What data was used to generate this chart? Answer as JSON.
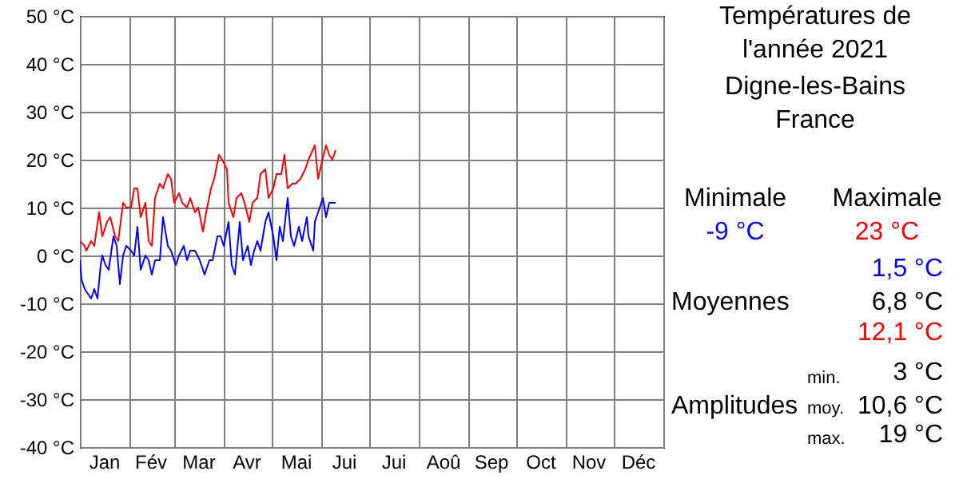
{
  "chart_data": {
    "type": "line",
    "title": "Températures de l'année 2021",
    "subtitle": "Digne-les-Bains France",
    "xlim": [
      "2021-01-01",
      "2022-01-01"
    ],
    "xticks": [
      {
        "value": "2021-01-01",
        "label": null
      },
      {
        "value": "2021-01-16",
        "label": "Jan"
      },
      {
        "value": "2021-02-01",
        "label": null
      },
      {
        "value": "2021-02-14",
        "label": "Fév"
      },
      {
        "value": "2021-03-01",
        "label": null
      },
      {
        "value": "2021-03-16",
        "label": "Mar"
      },
      {
        "value": "2021-04-01",
        "label": null
      },
      {
        "value": "2021-04-15",
        "label": "Avr"
      },
      {
        "value": "2021-05-01",
        "label": null
      },
      {
        "value": "2021-05-16",
        "label": "Mai"
      },
      {
        "value": "2021-06-01",
        "label": null
      },
      {
        "value": "2021-06-15",
        "label": "Jui"
      },
      {
        "value": "2021-07-01",
        "label": null
      },
      {
        "value": "2021-07-16",
        "label": "Jui"
      },
      {
        "value": "2021-08-01",
        "label": null
      },
      {
        "value": "2021-08-16",
        "label": "Aoû"
      },
      {
        "value": "2021-09-01",
        "label": null
      },
      {
        "value": "2021-09-15",
        "label": "Sep"
      },
      {
        "value": "2021-10-01",
        "label": null
      },
      {
        "value": "2021-10-16",
        "label": "Oct"
      },
      {
        "value": "2021-11-01",
        "label": null
      },
      {
        "value": "2021-11-15",
        "label": "Nov"
      },
      {
        "value": "2021-12-01",
        "label": null
      },
      {
        "value": "2021-12-16",
        "label": "Déc"
      },
      {
        "value": "2022-01-01",
        "label": null
      }
    ],
    "ylim": [
      -40,
      50
    ],
    "yticks": [
      {
        "value": -40,
        "label": "-40 °C"
      },
      {
        "value": -30,
        "label": "-30 °C"
      },
      {
        "value": -20,
        "label": "-20 °C"
      },
      {
        "value": -10,
        "label": "-10 °C"
      },
      {
        "value": 0,
        "label": "0 °C"
      },
      {
        "value": 10,
        "label": "10 °C"
      },
      {
        "value": 20,
        "label": "20 °C"
      },
      {
        "value": 30,
        "label": "30 °C"
      },
      {
        "value": 40,
        "label": "40 °C"
      },
      {
        "value": 50,
        "label": "50 °C"
      }
    ],
    "grid": true,
    "legend": false,
    "series": [
      {
        "color": "#0000ff",
        "x": [
          "2021-01-01",
          "2021-01-02",
          "2021-01-04",
          "2021-01-06",
          "2021-01-08",
          "2021-01-10",
          "2021-01-12",
          "2021-01-14",
          "2021-01-15",
          "2021-01-17",
          "2021-01-19",
          "2021-01-22",
          "2021-01-24",
          "2021-01-26",
          "2021-01-28",
          "2021-01-30",
          "2021-02-02",
          "2021-02-04",
          "2021-02-06",
          "2021-02-08",
          "2021-02-11",
          "2021-02-13",
          "2021-02-15",
          "2021-02-17",
          "2021-02-20",
          "2021-02-22",
          "2021-02-25",
          "2021-02-27",
          "2021-03-02",
          "2021-03-04",
          "2021-03-07",
          "2021-03-09",
          "2021-03-11",
          "2021-03-14",
          "2021-03-17",
          "2021-03-20",
          "2021-03-23",
          "2021-03-25",
          "2021-03-28",
          "2021-03-30",
          "2021-04-01",
          "2021-04-04",
          "2021-04-06",
          "2021-04-08",
          "2021-04-11",
          "2021-04-13",
          "2021-04-16",
          "2021-04-18",
          "2021-04-20",
          "2021-04-22",
          "2021-04-24",
          "2021-04-27",
          "2021-04-29",
          "2021-05-02",
          "2021-05-04",
          "2021-05-06",
          "2021-05-08",
          "2021-05-11",
          "2021-05-13",
          "2021-05-15",
          "2021-05-18",
          "2021-05-20",
          "2021-05-23",
          "2021-05-24",
          "2021-05-27",
          "2021-05-28",
          "2021-05-31",
          "2021-06-02",
          "2021-06-04",
          "2021-06-06",
          "2021-06-08",
          "2021-06-10"
        ],
        "values": [
          -1,
          -5,
          -7,
          -8,
          -9,
          -7,
          -9,
          -2,
          0,
          -2,
          -3,
          4,
          2,
          -6,
          0,
          2,
          1,
          0,
          6,
          -3,
          0,
          -1,
          -4,
          -1,
          -1,
          8,
          2,
          1,
          -2,
          0,
          2,
          -1,
          1,
          1,
          -1,
          -4,
          -1,
          -1,
          4,
          4,
          2,
          7,
          -2,
          -4,
          7,
          -1,
          2,
          -2,
          1,
          3,
          1,
          7,
          9,
          4,
          -1,
          6,
          3,
          12,
          4,
          2,
          6,
          3,
          8,
          4,
          1,
          7,
          10,
          12,
          8,
          11,
          11,
          11
        ]
      },
      {
        "color": "#ff0000",
        "x": [
          "2021-01-01",
          "2021-01-04",
          "2021-01-05",
          "2021-01-08",
          "2021-01-10",
          "2021-01-13",
          "2021-01-15",
          "2021-01-18",
          "2021-01-20",
          "2021-01-23",
          "2021-01-25",
          "2021-01-28",
          "2021-01-30",
          "2021-02-02",
          "2021-02-04",
          "2021-02-06",
          "2021-02-08",
          "2021-02-11",
          "2021-02-13",
          "2021-02-15",
          "2021-02-17",
          "2021-02-20",
          "2021-02-22",
          "2021-02-25",
          "2021-02-27",
          "2021-03-01",
          "2021-03-04",
          "2021-03-06",
          "2021-03-09",
          "2021-03-11",
          "2021-03-14",
          "2021-03-16",
          "2021-03-19",
          "2021-03-21",
          "2021-03-24",
          "2021-03-26",
          "2021-03-29",
          "2021-03-31",
          "2021-04-03",
          "2021-04-04",
          "2021-04-07",
          "2021-04-09",
          "2021-04-12",
          "2021-04-14",
          "2021-04-17",
          "2021-04-19",
          "2021-04-22",
          "2021-04-24",
          "2021-04-27",
          "2021-04-29",
          "2021-05-02",
          "2021-05-04",
          "2021-05-07",
          "2021-05-09",
          "2021-05-11",
          "2021-05-14",
          "2021-05-16",
          "2021-05-19",
          "2021-05-22",
          "2021-05-24",
          "2021-05-28",
          "2021-05-30",
          "2021-06-01",
          "2021-06-04",
          "2021-06-06",
          "2021-06-08",
          "2021-06-10"
        ],
        "values": [
          3,
          2,
          1,
          3,
          2,
          9,
          4,
          7,
          8,
          4,
          3,
          11,
          10,
          10,
          14,
          14,
          8,
          11,
          3,
          2,
          12,
          15,
          14,
          17,
          16,
          11,
          13,
          11,
          10,
          12,
          9,
          10,
          5,
          9,
          14,
          16,
          21,
          20,
          18,
          11,
          8,
          12,
          13,
          11,
          7,
          11,
          12,
          17,
          18,
          12,
          14,
          17,
          17,
          21,
          14,
          15,
          15,
          16,
          18,
          20,
          23,
          16,
          19,
          23,
          21,
          20,
          22
        ]
      }
    ],
    "annotations": [
      "Minimale",
      "Maximale",
      "-9 °C",
      "23 °C",
      "1,5 °C",
      "Moyennes",
      "6,8 °C",
      "12,1 °C",
      "min.",
      "3 °C",
      "Amplitudes",
      "moy.",
      "10,6 °C",
      "max.",
      "19 °C"
    ]
  }
}
